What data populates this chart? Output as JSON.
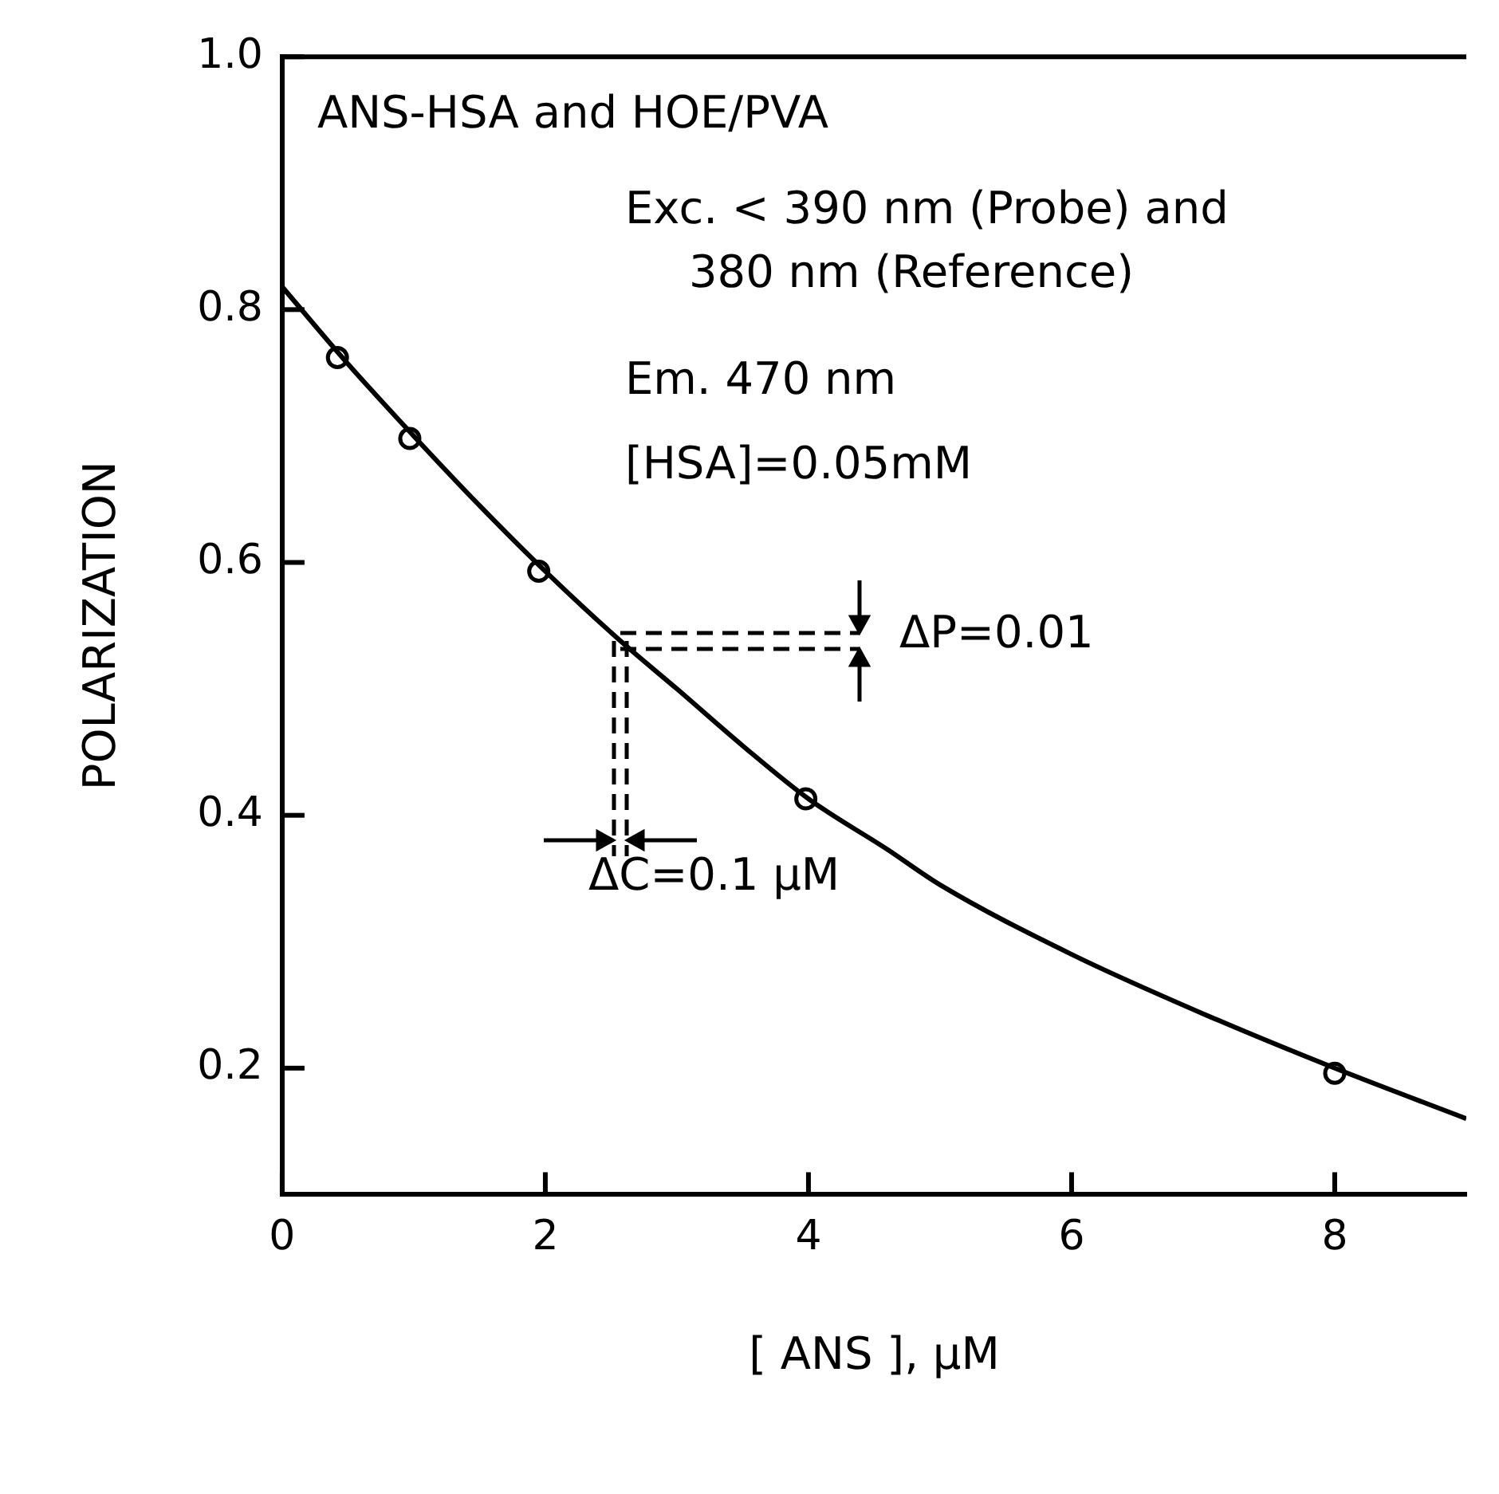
{
  "chart_data": {
    "type": "scatter",
    "xlabel": "[ ANS ], μM",
    "ylabel": "POLARIZATION",
    "xlim": [
      0,
      9
    ],
    "xticks": [
      0,
      2,
      4,
      6,
      8
    ],
    "ylim": [
      0.1,
      1.0
    ],
    "yticks": [
      0.2,
      0.4,
      0.6,
      0.8,
      {
        "value": 1.0,
        "label": "1.0"
      }
    ],
    "grid": false,
    "legend": false,
    "series": [
      {
        "type": "line",
        "marker": "none",
        "color": "#000000",
        "x": [
          0,
          0.5,
          1,
          1.5,
          2,
          2.57,
          3,
          3.5,
          4,
          4.6,
          5,
          6,
          7,
          8,
          9
        ],
        "values": [
          0.818,
          0.757,
          0.7,
          0.645,
          0.593,
          0.538,
          0.5,
          0.455,
          0.413,
          0.373,
          0.345,
          0.29,
          0.243,
          0.2,
          0.16
        ]
      },
      {
        "type": "scatter",
        "marker": "circle",
        "color": "#000000",
        "x": [
          0.42,
          0.97,
          1.95,
          3.98,
          8
        ],
        "values": [
          0.762,
          0.698,
          0.593,
          0.413,
          0.196
        ]
      }
    ],
    "annotations": [
      "ANS-HSA and HOE/PVA",
      "Exc. < 390 nm (Probe) and",
      "380 nm (Reference)",
      "Em. 470 nm",
      "[HSA]=0.05mM",
      {
        "text": "ΔP=0.01",
        "x": 2.57,
        "y": 0.538
      },
      {
        "text": "ΔC=0.1 μM",
        "x": 2.57,
        "y": 0.538
      }
    ]
  }
}
